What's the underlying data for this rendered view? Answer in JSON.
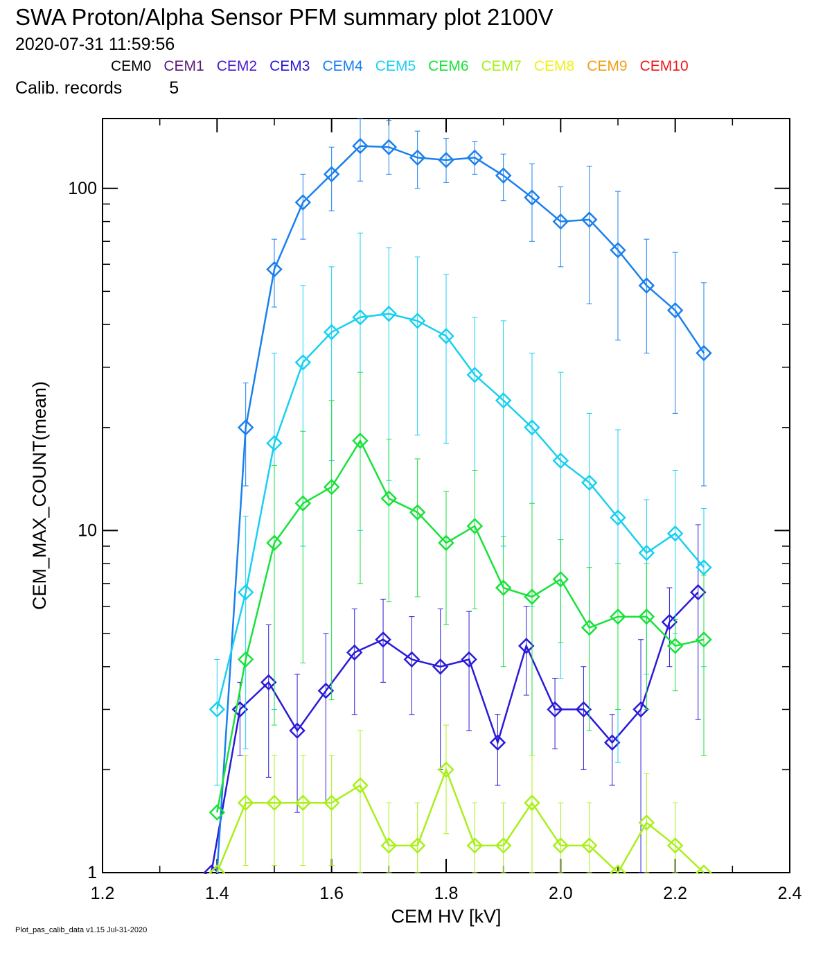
{
  "header": {
    "title": "SWA Proton/Alpha Sensor PFM summary plot 2100V",
    "timestamp": "2020-07-31 11:59:56",
    "calib_label": "Calib. records",
    "calib_value": "5"
  },
  "legend": [
    {
      "label": "CEM0",
      "color": "#000000"
    },
    {
      "label": "CEM1",
      "color": "#5a1a7a"
    },
    {
      "label": "CEM2",
      "color": "#4a1ad0"
    },
    {
      "label": "CEM3",
      "color": "#2a1ad8"
    },
    {
      "label": "CEM4",
      "color": "#1a80ee"
    },
    {
      "label": "CEM5",
      "color": "#18d0f0"
    },
    {
      "label": "CEM6",
      "color": "#18e23a"
    },
    {
      "label": "CEM7",
      "color": "#a8f018"
    },
    {
      "label": "CEM8",
      "color": "#f0f018"
    },
    {
      "label": "CEM9",
      "color": "#f0a018"
    },
    {
      "label": "CEM10",
      "color": "#ee1818"
    }
  ],
  "footer": "Plot_pas_calib_data v1.15 Jul-31-2020",
  "chart_data": {
    "type": "line",
    "xlabel": "CEM HV [kV]",
    "ylabel": "CEM_MAX_COUNT(mean)",
    "xlim": [
      1.2,
      2.4
    ],
    "ylim": [
      1,
      160
    ],
    "y_scale": "log",
    "x_ticks": [
      "1.2",
      "1.4",
      "1.6",
      "1.8",
      "2.0",
      "2.2",
      "2.4"
    ],
    "y_ticks": [
      "1",
      "10",
      "100"
    ],
    "marker": "diamond",
    "error_bars": true,
    "series": [
      {
        "name": "CEM3",
        "color": "#2a1ad8",
        "x": [
          1.39,
          1.44,
          1.49,
          1.54,
          1.59,
          1.64,
          1.69,
          1.74,
          1.79,
          1.84,
          1.89,
          1.94,
          1.99,
          2.04,
          2.09,
          2.14,
          2.19,
          2.24
        ],
        "y": [
          1.0,
          3.0,
          3.6,
          2.6,
          3.4,
          4.4,
          4.8,
          4.2,
          4.0,
          4.2,
          2.4,
          4.6,
          3.0,
          3.0,
          2.4,
          3.0,
          5.4,
          6.6
        ],
        "y_low": [
          null,
          2.2,
          1.9,
          1.5,
          1.6,
          2.9,
          3.6,
          2.9,
          2.0,
          2.6,
          1.8,
          3.3,
          2.3,
          2.0,
          1.8,
          1.0,
          4.0,
          2.8
        ],
        "y_high": [
          null,
          3.6,
          5.3,
          3.8,
          5.0,
          5.9,
          6.3,
          5.6,
          5.9,
          5.8,
          2.9,
          6.0,
          3.7,
          4.0,
          2.9,
          4.8,
          6.8,
          10.4
        ]
      },
      {
        "name": "CEM4",
        "color": "#1a80ee",
        "x": [
          1.35,
          1.4,
          1.45,
          1.5,
          1.55,
          1.6,
          1.65,
          1.7,
          1.75,
          1.8,
          1.85,
          1.9,
          1.95,
          2.0,
          2.05,
          2.1,
          2.15,
          2.2,
          2.25
        ],
        "y": [
          null,
          1.0,
          20,
          58,
          91,
          110,
          133,
          132,
          123,
          121,
          123,
          109,
          94,
          80,
          81,
          66,
          52,
          44,
          33
        ],
        "y_low": [
          null,
          null,
          13.5,
          45,
          71,
          86,
          105,
          110,
          100,
          104,
          110,
          92,
          70,
          59,
          46,
          36,
          33,
          22,
          13.5
        ],
        "y_high": [
          null,
          null,
          27,
          71,
          110,
          132,
          160,
          158,
          147,
          140,
          137,
          126,
          118,
          101,
          116,
          98,
          71,
          65,
          53
        ]
      },
      {
        "name": "CEM5",
        "color": "#18d0f0",
        "x": [
          1.4,
          1.45,
          1.5,
          1.55,
          1.6,
          1.65,
          1.7,
          1.75,
          1.8,
          1.85,
          1.9,
          1.95,
          2.0,
          2.05,
          2.1,
          2.15,
          2.2,
          2.25
        ],
        "y": [
          3.0,
          6.6,
          18,
          31,
          38,
          42,
          43,
          41,
          37,
          28.5,
          24,
          20,
          16,
          13.8,
          10.9,
          8.6,
          9.8,
          7.8
        ],
        "y_low": [
          1.8,
          2.3,
          3.0,
          9.0,
          16,
          10,
          14,
          19,
          18,
          15,
          9.0,
          6.0,
          3.7,
          5.4,
          2.1,
          3.8,
          5.0,
          4.0
        ],
        "y_high": [
          4.2,
          11,
          33,
          52,
          59,
          74,
          67,
          63,
          56,
          42,
          41,
          33,
          29,
          22,
          19.7,
          12.3,
          15,
          11.6
        ]
      },
      {
        "name": "CEM6",
        "color": "#18e23a",
        "x": [
          1.4,
          1.45,
          1.5,
          1.55,
          1.6,
          1.65,
          1.7,
          1.75,
          1.8,
          1.85,
          1.9,
          1.95,
          2.0,
          2.05,
          2.1,
          2.15,
          2.2,
          2.25
        ],
        "y": [
          1.5,
          4.2,
          9.2,
          12.0,
          13.4,
          18.3,
          12.4,
          11.3,
          9.2,
          10.3,
          6.8,
          6.4,
          7.2,
          5.2,
          5.6,
          5.6,
          4.6,
          4.8
        ],
        "y_low": [
          null,
          null,
          2.7,
          4.1,
          3.2,
          7.0,
          6.2,
          6.4,
          5.3,
          5.9,
          4.0,
          1.0,
          4.7,
          2.6,
          3.0,
          3.0,
          3.4,
          2.2
        ],
        "y_high": [
          2.1,
          6.3,
          15.5,
          19.5,
          24,
          29,
          18.5,
          16.2,
          13.0,
          15.0,
          9.6,
          12.0,
          9.4,
          7.8,
          8.0,
          8.0,
          5.5,
          7.4
        ]
      },
      {
        "name": "CEM7",
        "color": "#a8f018",
        "x": [
          1.4,
          1.45,
          1.5,
          1.55,
          1.6,
          1.65,
          1.7,
          1.75,
          1.8,
          1.85,
          1.9,
          1.95,
          2.0,
          2.05,
          2.1,
          2.15,
          2.2,
          2.25
        ],
        "y": [
          1.0,
          1.6,
          1.6,
          1.6,
          1.6,
          1.8,
          1.2,
          1.2,
          2.0,
          1.2,
          1.2,
          1.6,
          1.2,
          1.2,
          1.0,
          1.4,
          1.2,
          1.0
        ],
        "y_low": [
          null,
          1.05,
          1.05,
          1.05,
          1.05,
          1.0,
          1.0,
          1.0,
          1.3,
          1.0,
          1.0,
          1.0,
          1.0,
          1.0,
          null,
          1.0,
          1.0,
          null
        ],
        "y_high": [
          null,
          2.2,
          2.2,
          2.2,
          2.2,
          2.6,
          1.6,
          1.6,
          2.7,
          1.6,
          1.6,
          2.2,
          1.6,
          1.6,
          null,
          1.95,
          1.6,
          null
        ]
      }
    ]
  }
}
